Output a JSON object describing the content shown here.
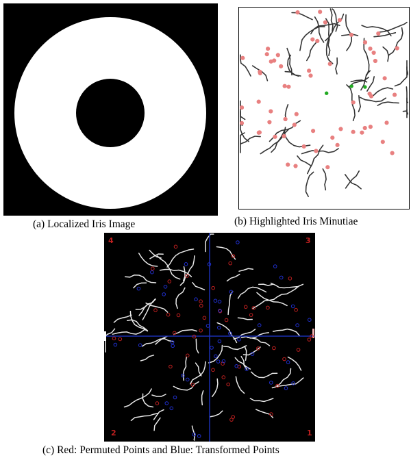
{
  "figure": {
    "panels": [
      {
        "id": "a",
        "caption": "(a)  Localized Iris  Image"
      },
      {
        "id": "b",
        "caption": "(b)  Highlighted Iris Minutiae"
      },
      {
        "id": "c",
        "caption": "(c)  Red: Permuted Points and  Blue: Transformed Points",
        "quadrant_labels": [
          "4",
          "3",
          "2",
          "1"
        ]
      }
    ],
    "colors": {
      "iris": "#ffffff",
      "pupil": "#000000",
      "background_a": "#000000",
      "minutia_marker": "#e88080",
      "green_marker": "#22aa22",
      "permuted_points": "#c02020",
      "transformed_points": "#2030d0",
      "axis_lines": "#1a2fb0"
    }
  }
}
